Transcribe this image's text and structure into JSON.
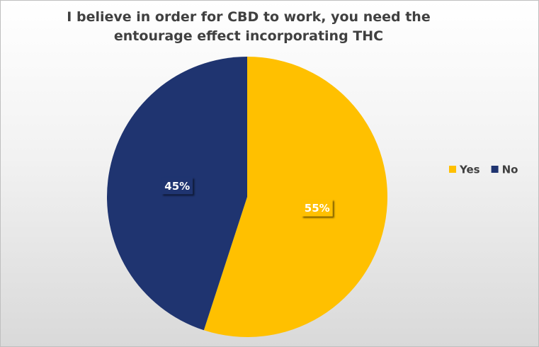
{
  "chart_data": {
    "type": "pie",
    "title": "I believe in order for CBD to work, you need the entourage effect incorporating THC",
    "categories": [
      "Yes",
      "No"
    ],
    "values": [
      55,
      45
    ],
    "value_labels": [
      "55%",
      "45%"
    ],
    "colors": [
      "#FFC000",
      "#1F3470"
    ],
    "legend": "right"
  }
}
